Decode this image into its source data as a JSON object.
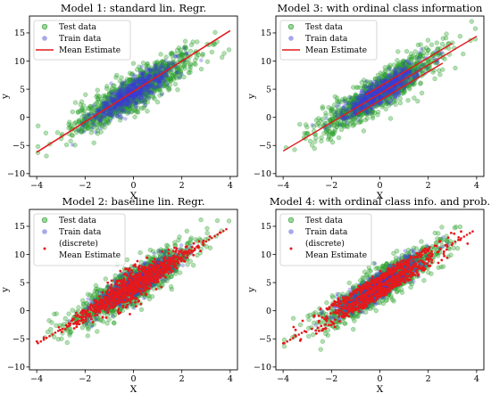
{
  "chart_data": [
    {
      "type": "scatter",
      "title": "Model 1: standard lin. Regr.",
      "xlabel": "X",
      "ylabel": "y",
      "xlim": [
        -4.3,
        4.3
      ],
      "ylim": [
        -10.5,
        18
      ],
      "xticks": [
        "−4",
        "−2",
        "0",
        "2",
        "4"
      ],
      "yticks": [
        "−10",
        "−5",
        "0",
        "5",
        "10",
        "15"
      ],
      "legend_position": "upper-left",
      "legend": [
        "Test data",
        "Train data",
        "Mean Estimate"
      ],
      "truth": {
        "slope": 2.6,
        "intercept": 4.5,
        "noise_sd": 1.6
      },
      "estimate": {
        "kind": "line",
        "x_range": [
          -4.0,
          4.0
        ],
        "slope": 2.7,
        "intercept": 4.6
      }
    },
    {
      "type": "scatter",
      "title": "Model 3: with ordinal class information",
      "xlabel": "X",
      "ylabel": "y",
      "xlim": [
        -4.3,
        4.3
      ],
      "ylim": [
        -10.5,
        18
      ],
      "xticks": [
        "−4",
        "−2",
        "0",
        "2",
        "4"
      ],
      "yticks": [
        "−10",
        "−5",
        "0",
        "5",
        "10",
        "15"
      ],
      "legend_position": "upper-left",
      "legend": [
        "Test data",
        "Train data",
        "Mean Estimate"
      ],
      "truth": {
        "slope": 2.6,
        "intercept": 4.5,
        "noise_sd": 1.6
      },
      "estimate": {
        "kind": "bands",
        "x_range": [
          -4.0,
          4.0
        ],
        "slope": 2.55,
        "intercept": 4.2,
        "band_offsets": [
          -1.2,
          0,
          1.3
        ]
      }
    },
    {
      "type": "scatter",
      "title": "Model 2: baseline lin. Regr.",
      "xlabel": "X",
      "ylabel": "y",
      "xlim": [
        -4.3,
        4.3
      ],
      "ylim": [
        -10.5,
        18
      ],
      "xticks": [
        "−4",
        "−2",
        "0",
        "2",
        "4"
      ],
      "yticks": [
        "−10",
        "−5",
        "0",
        "5",
        "10",
        "15"
      ],
      "legend_position": "upper-left",
      "legend": [
        "Test data",
        "Train data",
        "(discrete)",
        "Mean Estimate"
      ],
      "truth": {
        "slope": 2.6,
        "intercept": 4.5,
        "noise_sd": 1.6
      },
      "estimate": {
        "kind": "dots-spread",
        "x_range": [
          -4.0,
          4.0
        ],
        "slope": 2.6,
        "intercept": 4.5,
        "spread": 1.5
      }
    },
    {
      "type": "scatter",
      "title": "Model 4: with ordinal class info. and prob.",
      "xlabel": "X",
      "ylabel": "y",
      "xlim": [
        -4.3,
        4.3
      ],
      "ylim": [
        -10.5,
        18
      ],
      "xticks": [
        "−4",
        "−2",
        "0",
        "2",
        "4"
      ],
      "yticks": [
        "−10",
        "−5",
        "0",
        "5",
        "10",
        "15"
      ],
      "legend_position": "upper-left",
      "legend": [
        "Test data",
        "Train data",
        "(discrete)",
        "Mean Estimate"
      ],
      "truth": {
        "slope": 2.6,
        "intercept": 4.5,
        "noise_sd": 1.6
      },
      "estimate": {
        "kind": "dots-bands",
        "x_range": [
          -4.0,
          4.0
        ],
        "slope": 2.55,
        "intercept": 4.3,
        "band_offsets": [
          -1.4,
          0,
          1.5
        ]
      }
    }
  ],
  "colors": {
    "test": "#2ca02c",
    "train": "#3b3bd6",
    "estimate": "#e41a1c"
  }
}
